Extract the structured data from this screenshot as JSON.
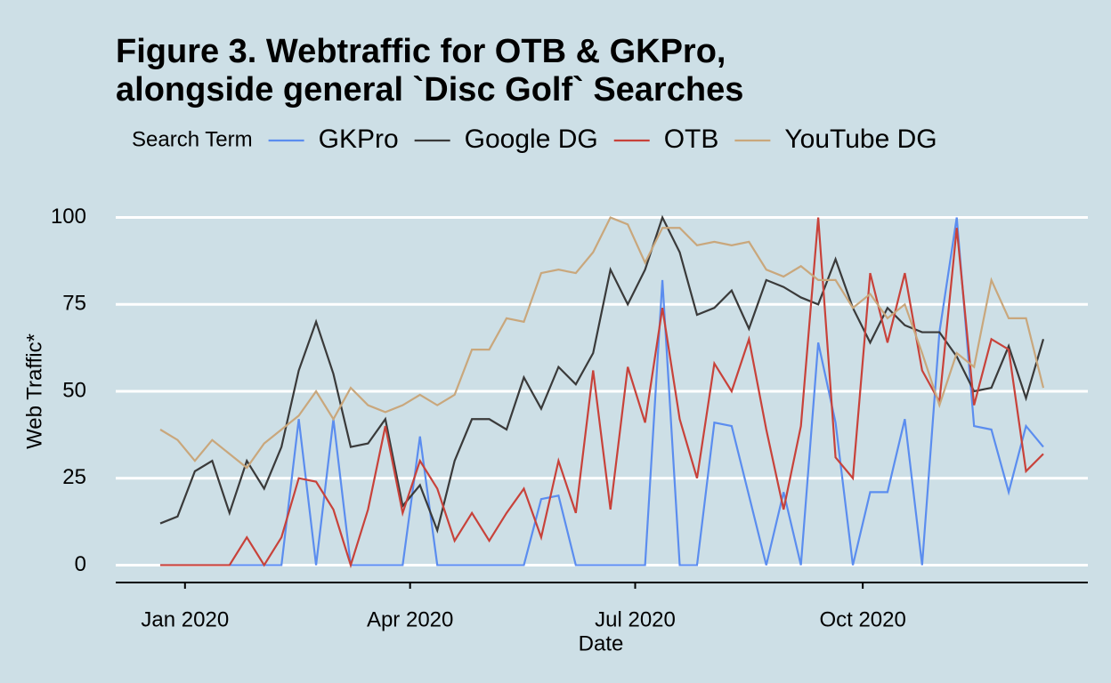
{
  "chart_data": {
    "type": "line",
    "title": [
      "Figure 3. Webtraffic for OTB & GKPro,",
      "alongside general `Disc Golf` Searches"
    ],
    "x_label": "Date",
    "y_label": "Web Traffic*",
    "legend_title": "Search Term",
    "legend": "top",
    "x": [
      -10,
      -3,
      4,
      11,
      18,
      25,
      32,
      39,
      46,
      53,
      60,
      67,
      74,
      81,
      88,
      95,
      102,
      109,
      116,
      123,
      130,
      137,
      144,
      151,
      158,
      165,
      172,
      179,
      186,
      193,
      200,
      207,
      214,
      221,
      228,
      235,
      242,
      249,
      256,
      263,
      270,
      277,
      284,
      291,
      298,
      305,
      312,
      319,
      326,
      333,
      340,
      347
    ],
    "xlim": [
      -28,
      365
    ],
    "xticks": [
      {
        "value": 0,
        "label": "Jan 2020"
      },
      {
        "value": 91,
        "label": "Apr 2020"
      },
      {
        "value": 182,
        "label": "Jul 2020"
      },
      {
        "value": 274,
        "label": "Oct 2020"
      }
    ],
    "ylim": [
      -5,
      105
    ],
    "yticks": [
      0,
      25,
      50,
      75,
      100
    ],
    "grid": true,
    "series": [
      {
        "name": "GKPro",
        "color": "#5b8def",
        "values": [
          0,
          0,
          0,
          0,
          0,
          0,
          0,
          0,
          42,
          0,
          42,
          0,
          0,
          0,
          0,
          37,
          0,
          0,
          0,
          0,
          0,
          0,
          19,
          20,
          0,
          0,
          0,
          0,
          0,
          82,
          0,
          0,
          41,
          40,
          20,
          0,
          21,
          0,
          64,
          41,
          0,
          21,
          21,
          42,
          0,
          67,
          100,
          40,
          39,
          21,
          40,
          34
        ]
      },
      {
        "name": "Google DG",
        "color": "#3a3a3a",
        "values": [
          12,
          14,
          27,
          30,
          15,
          30,
          22,
          34,
          56,
          70,
          55,
          34,
          35,
          42,
          17,
          23,
          10,
          30,
          42,
          42,
          39,
          54,
          45,
          57,
          52,
          61,
          85,
          75,
          85,
          100,
          90,
          72,
          74,
          79,
          68,
          82,
          80,
          77,
          75,
          88,
          74,
          64,
          74,
          69,
          67,
          67,
          60,
          50,
          51,
          63,
          48,
          65
        ]
      },
      {
        "name": "OTB",
        "color": "#c8423a",
        "values": [
          0,
          0,
          0,
          0,
          0,
          8,
          0,
          8,
          25,
          24,
          16,
          0,
          16,
          40,
          15,
          30,
          22,
          7,
          15,
          7,
          15,
          22,
          8,
          30,
          15,
          56,
          16,
          57,
          41,
          74,
          42,
          25,
          58,
          50,
          65,
          39,
          16,
          40,
          100,
          31,
          25,
          84,
          64,
          84,
          56,
          47,
          97,
          46,
          65,
          62,
          27,
          32
        ]
      },
      {
        "name": "YouTube DG",
        "color": "#c9a77c",
        "values": [
          39,
          36,
          30,
          36,
          32,
          28,
          35,
          39,
          43,
          50,
          42,
          51,
          46,
          44,
          46,
          49,
          46,
          49,
          62,
          62,
          71,
          70,
          84,
          85,
          84,
          90,
          100,
          98,
          87,
          97,
          97,
          92,
          93,
          92,
          93,
          85,
          83,
          86,
          82,
          82,
          74,
          78,
          71,
          75,
          61,
          46,
          61,
          57,
          82,
          71,
          71,
          51
        ]
      }
    ]
  }
}
